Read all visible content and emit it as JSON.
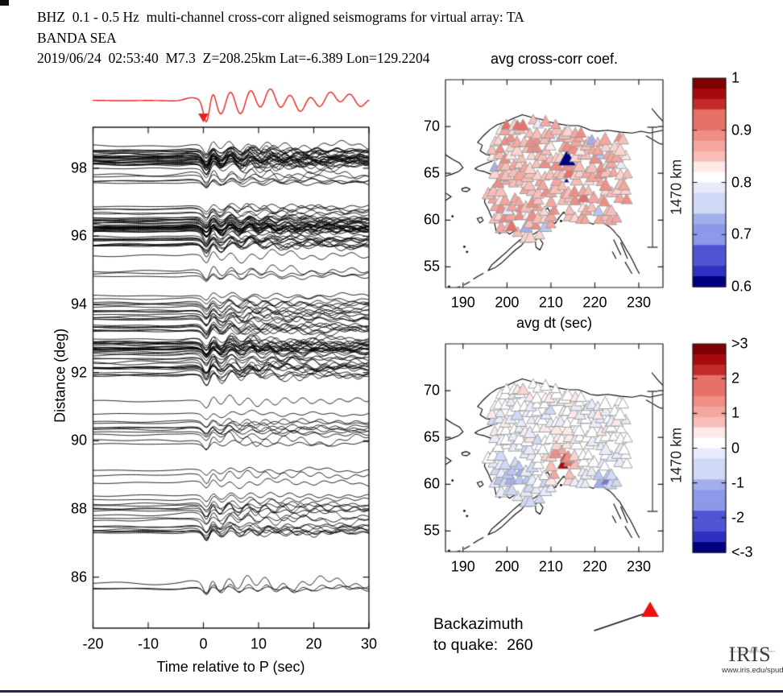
{
  "header": {
    "line1": "BHZ  0.1 - 0.5 Hz  multi-channel cross-corr aligned seismograms for virtual array: TA",
    "line2": "BANDA SEA",
    "line3": "2019/06/24  02:53:40  M7.3  Z=208.25km Lat=-6.389 Lon=129.2204"
  },
  "chart_data": [
    {
      "id": "record_section",
      "type": "line",
      "title": "",
      "xlabel": "Time relative to P (sec)",
      "ylabel": "Distance (deg)",
      "xlim": [
        -20,
        30
      ],
      "ylim": [
        84.5,
        99.2
      ],
      "xticks": [
        -20,
        -10,
        0,
        10,
        20,
        30
      ],
      "yticks": [
        98,
        96,
        94,
        92,
        90,
        88,
        86
      ],
      "n_traces": 170,
      "trace_color": "#000000",
      "stack_trace_color": "#e8211d",
      "align_marker": "red downward arrow at t=0 above panel",
      "description": "Vertical (BHZ) seismograms 0.1-0.5 Hz, multi-channel cross-correlation aligned on P at 0 s; sharp downward first motion at 0 s followed by ringing coda; red array stack trace plotted above the panel"
    },
    {
      "id": "map_avg_cross_corr",
      "type": "scatter",
      "title": "avg cross-corr coef.",
      "xlabel": "avg dt (sec)",
      "xlim": [
        186,
        235.5
      ],
      "ylim": [
        52.8,
        75
      ],
      "xticks": [
        190,
        200,
        210,
        220,
        230
      ],
      "yticks": [
        70,
        65,
        60,
        55
      ],
      "marker": "triangle",
      "n_stations": 190,
      "region": "Alaska TA virtual array",
      "scale_bar_label": "1470 km",
      "colorbar": {
        "tick_labels": [
          "1",
          "0.9",
          "0.8",
          "0.7",
          "0.6"
        ],
        "vmax": 1.0,
        "vmin": 0.6,
        "colormap": "red-white-blue diverging, stepped"
      },
      "value_summary": "most stations 0.82-0.95 (pink/red); scattered 0.65-0.79 (blue); darkest 0.60 near lon 214, lat 66"
    },
    {
      "id": "map_avg_dt",
      "type": "scatter",
      "title": "",
      "xlabel": "",
      "xlim": [
        186,
        235.5
      ],
      "ylim": [
        52.8,
        75
      ],
      "xticks": [
        190,
        200,
        210,
        220,
        230
      ],
      "yticks": [
        70,
        65,
        60,
        55
      ],
      "marker": "triangle",
      "n_stations": 190,
      "region": "Alaska TA virtual array",
      "scale_bar_label": "1470 km",
      "colorbar": {
        "tick_labels": [
          ">3",
          "2",
          "1",
          "0",
          "-1",
          "-2",
          "<-3"
        ],
        "vmax": 3,
        "vmin": -3,
        "colormap": "red-white-blue diverging, stepped"
      },
      "value_summary": "red cluster (+1 to +2.5 s) across central Alaska; blue (-0.5 to -1.5 s) in southwest and southeast; near zero in north"
    }
  ],
  "backazimuth": {
    "line1": "Backazimuth",
    "line2": "to quake:  260",
    "value": 260,
    "arrow_color": "#ee1111"
  },
  "logo": {
    "text": "IRIS",
    "url": "www.iris.edu/spud"
  },
  "colors": {
    "background": "#ffffff",
    "text": "#000000",
    "stack_trace": "#e8211d",
    "coastline": "#000000",
    "triangle_outline": "#999999",
    "scale_bar": "#444444",
    "bottom_bar": "#23235a"
  }
}
